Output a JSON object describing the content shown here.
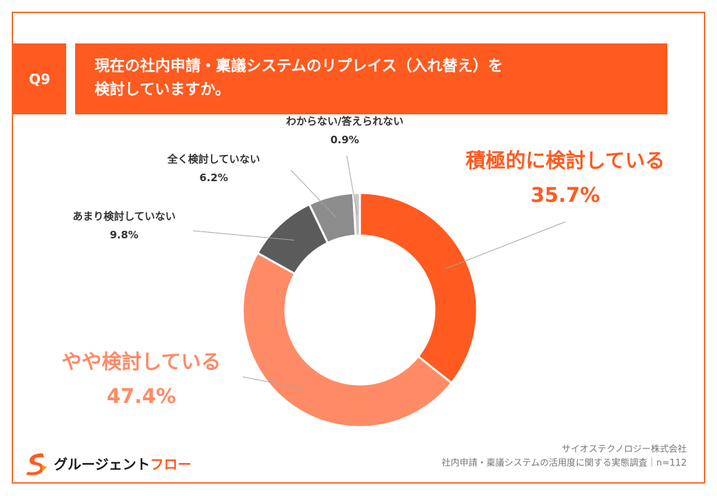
{
  "question_no": "Q9",
  "title": {
    "line1": "現在の社内申請・稟議システムのリプレイス（入れ替え）を",
    "line2": "検討していますか。"
  },
  "colors": {
    "brand_orange": "#ff5a1f",
    "light_orange": "#ff8a66",
    "dark_gray": "#5b5b5b",
    "mid_gray": "#8c8c8c",
    "light_gray": "#c8c8c8"
  },
  "chart_data": {
    "type": "pie",
    "donut": true,
    "n": 112,
    "slices": [
      {
        "label": "積極的に検討している",
        "value": 35.7,
        "display": "35.7%",
        "color": "#ff5a1f"
      },
      {
        "label": "やや検討している",
        "value": 47.4,
        "display": "47.4%",
        "color": "#ff8a66"
      },
      {
        "label": "あまり検討していない",
        "value": 9.8,
        "display": "9.8%",
        "color": "#5b5b5b"
      },
      {
        "label": "全く検討していない",
        "value": 6.2,
        "display": "6.2%",
        "color": "#8c8c8c"
      },
      {
        "label": "わからない/答えられない",
        "value": 0.9,
        "display": "0.9%",
        "color": "#c8c8c8"
      }
    ]
  },
  "logo": {
    "part1": "グルージェント",
    "part2": "フロー",
    "icon": "glue-logo-icon"
  },
  "source": {
    "company": "サイオステクノロジー株式会社",
    "survey": "社内申請・稟議システムの活用度に関する実態調査｜n=112"
  }
}
